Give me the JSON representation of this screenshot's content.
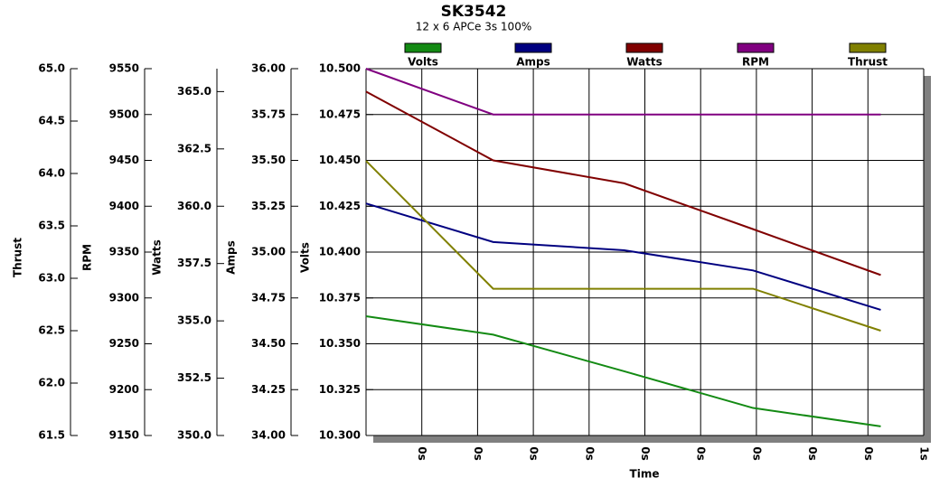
{
  "chart_data": {
    "type": "line",
    "title": "SK3542",
    "subtitle": "12 x 6 APCe 3s 100%",
    "xlabel": "Time",
    "xlim": [
      0,
      1
    ],
    "xticks": [
      {
        "value": 0.1,
        "label": "0s"
      },
      {
        "value": 0.2,
        "label": "0s"
      },
      {
        "value": 0.3,
        "label": "0s"
      },
      {
        "value": 0.4,
        "label": "0s"
      },
      {
        "value": 0.5,
        "label": "0s"
      },
      {
        "value": 0.6,
        "label": "0s"
      },
      {
        "value": 0.7,
        "label": "0s"
      },
      {
        "value": 0.8,
        "label": "0s"
      },
      {
        "value": 0.9,
        "label": "0s"
      },
      {
        "value": 1.0,
        "label": "1s"
      }
    ],
    "grid": true,
    "x": [
      0,
      0.228,
      0.463,
      0.694,
      0.923
    ],
    "axes": [
      {
        "label": "Volts",
        "lim": [
          10.3,
          10.5
        ],
        "ticks": [
          {
            "value": 10.3,
            "label": "10.300"
          },
          {
            "value": 10.325,
            "label": "10.325"
          },
          {
            "value": 10.35,
            "label": "10.350"
          },
          {
            "value": 10.375,
            "label": "10.375"
          },
          {
            "value": 10.4,
            "label": "10.400"
          },
          {
            "value": 10.425,
            "label": "10.425"
          },
          {
            "value": 10.45,
            "label": "10.450"
          },
          {
            "value": 10.475,
            "label": "10.475"
          },
          {
            "value": 10.5,
            "label": "10.500"
          }
        ]
      },
      {
        "label": "Amps",
        "lim": [
          34,
          36
        ],
        "ticks": [
          {
            "value": 34,
            "label": "34.00"
          },
          {
            "value": 34.25,
            "label": "34.25"
          },
          {
            "value": 34.5,
            "label": "34.50"
          },
          {
            "value": 34.75,
            "label": "34.75"
          },
          {
            "value": 35,
            "label": "35.00"
          },
          {
            "value": 35.25,
            "label": "35.25"
          },
          {
            "value": 35.5,
            "label": "35.50"
          },
          {
            "value": 35.75,
            "label": "35.75"
          },
          {
            "value": 36,
            "label": "36.00"
          }
        ]
      },
      {
        "label": "Watts",
        "lim": [
          350,
          366
        ],
        "ticks": [
          {
            "value": 350,
            "label": "350.0"
          },
          352.5,
          {
            "value": 355,
            "label": "355.0"
          },
          357.5,
          {
            "value": 360,
            "label": "360.0"
          },
          362.5,
          {
            "value": 365,
            "label": "365.0"
          }
        ]
      },
      {
        "label": "RPM",
        "lim": [
          9150,
          9550
        ],
        "ticks": [
          9150,
          9200,
          9250,
          9300,
          9350,
          9400,
          9450,
          9500,
          9550
        ]
      },
      {
        "label": "Thrust",
        "lim": [
          61.5,
          65
        ],
        "ticks": [
          61.5,
          {
            "value": 62,
            "label": "62.0"
          },
          62.5,
          {
            "value": 63,
            "label": "63.0"
          },
          63.5,
          {
            "value": 64,
            "label": "64.0"
          },
          64.5,
          {
            "value": 65,
            "label": "65.0"
          }
        ]
      }
    ],
    "series": [
      {
        "name": "Volts",
        "color": "#138a13",
        "axis": 0,
        "values": [
          10.365,
          10.355,
          10.335,
          10.315,
          10.305
        ]
      },
      {
        "name": "Amps",
        "color": "#000080",
        "axis": 1,
        "values": [
          35.265,
          35.055,
          35.01,
          34.9,
          34.685
        ]
      },
      {
        "name": "Watts",
        "color": "#800000",
        "axis": 2,
        "values": [
          365,
          362,
          361,
          359,
          357
        ]
      },
      {
        "name": "RPM",
        "color": "#800080",
        "axis": 3,
        "values": [
          9550,
          9500,
          9500,
          9500,
          9500
        ]
      },
      {
        "name": "Thrust",
        "color": "#808000",
        "axis": 4,
        "values": [
          64.12,
          62.9,
          62.9,
          62.9,
          62.5
        ]
      }
    ]
  }
}
